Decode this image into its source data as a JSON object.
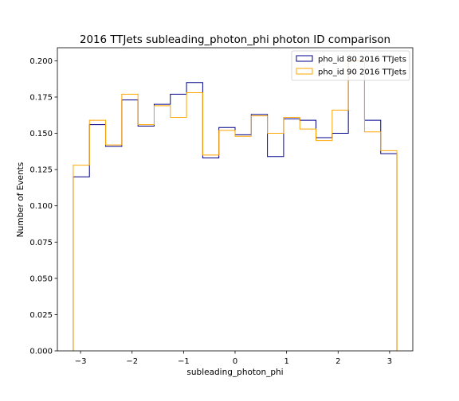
{
  "chart_data": {
    "type": "step",
    "title": "2016 TTJets subleading_photon_phi photon ID comparison",
    "xlabel": "subleading_photon_phi",
    "ylabel": "Number of Events",
    "xlim": [
      -3.45,
      3.45
    ],
    "ylim": [
      0.0,
      0.209
    ],
    "xticks": [
      -3,
      -2,
      -1,
      0,
      1,
      2,
      3
    ],
    "xtick_labels": [
      "−3",
      "−2",
      "−1",
      "0",
      "1",
      "2",
      "3"
    ],
    "yticks": [
      0.0,
      0.025,
      0.05,
      0.075,
      0.1,
      0.125,
      0.15,
      0.175,
      0.2
    ],
    "ytick_labels": [
      "0.000",
      "0.025",
      "0.050",
      "0.075",
      "0.100",
      "0.125",
      "0.150",
      "0.175",
      "0.200"
    ],
    "bin_edges": [
      -3.1416,
      -2.8274,
      -2.5133,
      -2.1991,
      -1.885,
      -1.5708,
      -1.2566,
      -0.9425,
      -0.6283,
      -0.3142,
      0.0,
      0.3142,
      0.6283,
      0.9425,
      1.2566,
      1.5708,
      1.885,
      2.1991,
      2.5133,
      2.8274,
      3.1416
    ],
    "series": [
      {
        "name": "pho_id 80 2016 TTJets",
        "color": "#00008b",
        "values": [
          0.12,
          0.156,
          0.141,
          0.173,
          0.155,
          0.17,
          0.177,
          0.185,
          0.133,
          0.154,
          0.149,
          0.163,
          0.134,
          0.16,
          0.159,
          0.147,
          0.15,
          0.2,
          0.159,
          0.136
        ]
      },
      {
        "name": "pho_id 90 2016 TTJets",
        "color": "#ffa500",
        "values": [
          0.128,
          0.159,
          0.142,
          0.177,
          0.156,
          0.169,
          0.161,
          0.178,
          0.135,
          0.152,
          0.148,
          0.162,
          0.15,
          0.161,
          0.153,
          0.145,
          0.166,
          0.2,
          0.151,
          0.138
        ]
      }
    ],
    "legend": "top-right",
    "grid": false
  }
}
